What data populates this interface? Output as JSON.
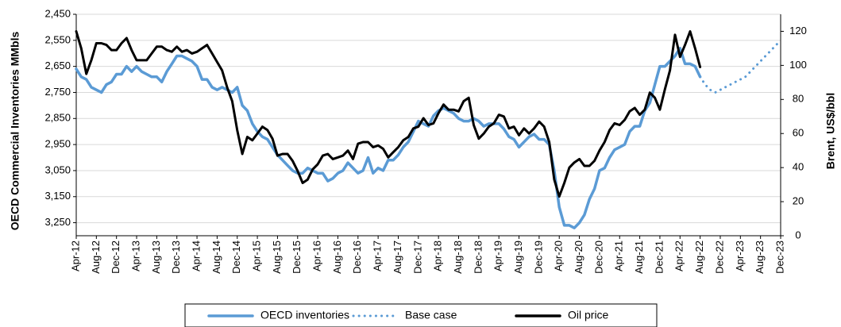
{
  "chart_data": {
    "type": "line",
    "y_label": "OECD Commercial Inventories MMbls",
    "y2_label": "Brent, US$/bbl",
    "categories": [
      "Apr-12",
      null,
      null,
      null,
      "Aug-12",
      null,
      null,
      null,
      "Dec-12",
      null,
      null,
      null,
      "Apr-13",
      null,
      null,
      null,
      "Aug-13",
      null,
      null,
      null,
      "Dec-13",
      null,
      null,
      null,
      "Apr-14",
      null,
      null,
      null,
      "Aug-14",
      null,
      null,
      null,
      "Dec-14",
      null,
      null,
      null,
      "Apr-15",
      null,
      null,
      null,
      "Aug-15",
      null,
      null,
      null,
      "Dec-15",
      null,
      null,
      null,
      "Apr-16",
      null,
      null,
      null,
      "Aug-16",
      null,
      null,
      null,
      "Dec-16",
      null,
      null,
      null,
      "Apr-17",
      null,
      null,
      null,
      "Aug-17",
      null,
      null,
      null,
      "Dec-17",
      null,
      null,
      null,
      "Apr-18",
      null,
      null,
      null,
      "Aug-18",
      null,
      null,
      null,
      "Dec-18",
      null,
      null,
      null,
      "Apr-19",
      null,
      null,
      null,
      "Aug-19",
      null,
      null,
      null,
      "Dec-19",
      null,
      null,
      null,
      "Apr-20",
      null,
      null,
      null,
      "Aug-20",
      null,
      null,
      null,
      "Dec-20",
      null,
      null,
      null,
      "Apr-21",
      null,
      null,
      null,
      "Aug-21",
      null,
      null,
      null,
      "Dec-21",
      null,
      null,
      null,
      "Apr-22",
      null,
      null,
      null,
      "Aug-22",
      null,
      null,
      null,
      "Dec-22",
      null,
      null,
      null,
      "Apr-23",
      null,
      null,
      null,
      "Aug-23",
      null,
      null,
      null,
      "Dec-23"
    ],
    "ylim": [
      2450,
      3300
    ],
    "inverted": true,
    "yticks": [
      {
        "value": 2450,
        "label": "2,450"
      },
      {
        "value": 2550,
        "label": "2,550"
      },
      {
        "value": 2650,
        "label": "2,650"
      },
      {
        "value": 2750,
        "label": "2,750"
      },
      {
        "value": 2850,
        "label": "2,850"
      },
      {
        "value": 2950,
        "label": "2,950"
      },
      {
        "value": 3050,
        "label": "3,050"
      },
      {
        "value": 3150,
        "label": "3,150"
      },
      {
        "value": 3250,
        "label": "3,250"
      }
    ],
    "y2lim": [
      0,
      130
    ],
    "y2ticks": [
      0,
      20,
      40,
      60,
      80,
      100,
      120
    ],
    "grid": true,
    "legend": "bottom",
    "series": [
      {
        "name": "OECD inventories",
        "color": "#5b9bd5",
        "style": "solid",
        "values": [
          2660,
          2690,
          2700,
          2730,
          2740,
          2750,
          2720,
          2710,
          2680,
          2680,
          2650,
          2670,
          2650,
          2670,
          2680,
          2690,
          2690,
          2710,
          2670,
          2640,
          2610,
          2610,
          2620,
          2630,
          2650,
          2700,
          2700,
          2730,
          2740,
          2730,
          2740,
          2750,
          2730,
          2800,
          2820,
          2870,
          2900,
          2920,
          2930,
          2960,
          2990,
          3010,
          3030,
          3050,
          3060,
          3060,
          3040,
          3050,
          3060,
          3060,
          3090,
          3080,
          3060,
          3050,
          3020,
          3040,
          3060,
          3050,
          3000,
          3060,
          3040,
          3050,
          3010,
          3010,
          2990,
          2960,
          2940,
          2900,
          2860,
          2870,
          2880,
          2840,
          2820,
          2810,
          2820,
          2830,
          2850,
          2860,
          2860,
          2850,
          2860,
          2880,
          2870,
          2870,
          2870,
          2890,
          2920,
          2930,
          2960,
          2940,
          2920,
          2910,
          2930,
          2930,
          2950,
          3050,
          3190,
          3260,
          3260,
          3270,
          3250,
          3220,
          3160,
          3120,
          3050,
          3040,
          3000,
          2970,
          2960,
          2950,
          2900,
          2880,
          2880,
          2820,
          2790,
          2720,
          2650,
          2650,
          2630,
          2610,
          2580,
          2640,
          2640,
          2650,
          2690,
          null,
          null,
          null,
          null,
          null,
          null,
          null,
          null,
          null,
          null,
          null,
          null,
          null,
          null,
          null,
          null
        ]
      },
      {
        "name": "Base case",
        "color": "#5b9bd5",
        "style": "dotted",
        "values": [
          null,
          null,
          null,
          null,
          null,
          null,
          null,
          null,
          null,
          null,
          null,
          null,
          null,
          null,
          null,
          null,
          null,
          null,
          null,
          null,
          null,
          null,
          null,
          null,
          null,
          null,
          null,
          null,
          null,
          null,
          null,
          null,
          null,
          null,
          null,
          null,
          null,
          null,
          null,
          null,
          null,
          null,
          null,
          null,
          null,
          null,
          null,
          null,
          null,
          null,
          null,
          null,
          null,
          null,
          null,
          null,
          null,
          null,
          null,
          null,
          null,
          null,
          null,
          null,
          null,
          null,
          null,
          null,
          null,
          null,
          null,
          null,
          null,
          null,
          null,
          null,
          null,
          null,
          null,
          null,
          null,
          null,
          null,
          null,
          null,
          null,
          null,
          null,
          null,
          null,
          null,
          null,
          null,
          null,
          null,
          null,
          null,
          null,
          null,
          null,
          null,
          null,
          null,
          null,
          null,
          null,
          null,
          null,
          null,
          null,
          null,
          null,
          null,
          null,
          null,
          null,
          null,
          null,
          null,
          null,
          null,
          null,
          null,
          null,
          2690,
          2720,
          2740,
          2750,
          2740,
          2730,
          2720,
          2710,
          2700,
          2690,
          2670,
          2650,
          2630,
          2610,
          2590,
          2570,
          2550
        ]
      },
      {
        "name": "Oil price",
        "color": "#000000",
        "style": "solid",
        "axis": "y2",
        "values": [
          120,
          110,
          95,
          103,
          113,
          113,
          112,
          109,
          109,
          113,
          116,
          109,
          103,
          103,
          103,
          107,
          111,
          111,
          109,
          108,
          111,
          108,
          109,
          107,
          108,
          110,
          112,
          107,
          102,
          97,
          87,
          79,
          62,
          48,
          58,
          56,
          60,
          64,
          62,
          57,
          47,
          48,
          48,
          44,
          38,
          31,
          33,
          39,
          42,
          47,
          48,
          45,
          46,
          47,
          50,
          45,
          54,
          55,
          55,
          52,
          53,
          51,
          46,
          49,
          52,
          56,
          58,
          63,
          64,
          69,
          65,
          66,
          72,
          77,
          74,
          74,
          73,
          79,
          81,
          65,
          57,
          60,
          64,
          66,
          71,
          70,
          63,
          64,
          59,
          63,
          60,
          63,
          67,
          64,
          55,
          33,
          23,
          31,
          40,
          43,
          45,
          41,
          41,
          44,
          50,
          55,
          62,
          66,
          65,
          68,
          73,
          75,
          71,
          74,
          84,
          81,
          74,
          86,
          97,
          118,
          105,
          112,
          120,
          110,
          99,
          null,
          null,
          null,
          null,
          null,
          null,
          null,
          null,
          null,
          null,
          null,
          null,
          null,
          null,
          null,
          null
        ]
      }
    ]
  }
}
